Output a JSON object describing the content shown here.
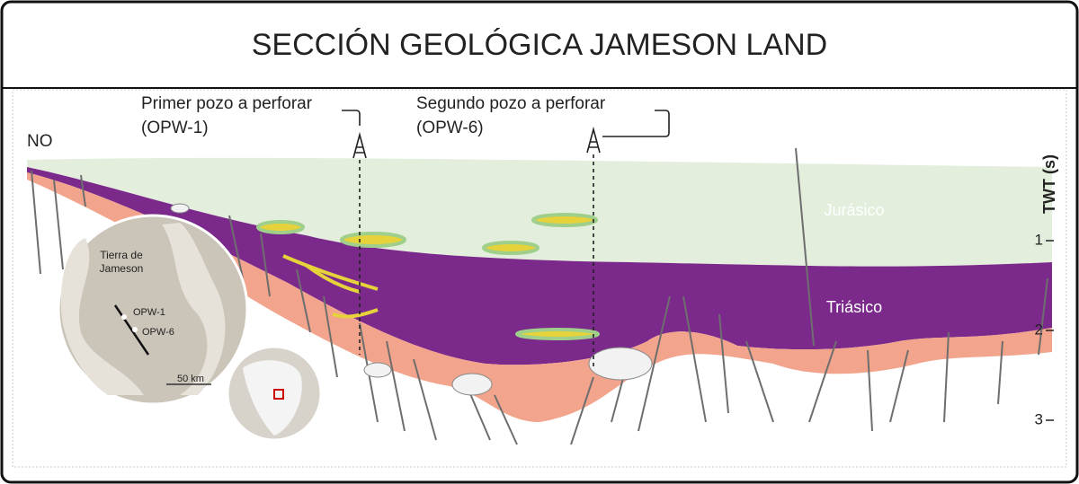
{
  "header": {
    "title": "SECCIÓN GEOLÓGICA JAMESON LAND"
  },
  "wells": [
    {
      "label": "Primer pozo a perforar",
      "code": "(OPW-1)"
    },
    {
      "label": "Segundo pozo a perforar",
      "code": "(OPW-6)"
    }
  ],
  "section": {
    "direction": "NO",
    "layers": [
      "Jurásico",
      "Triásico"
    ]
  },
  "axis": {
    "title": "TWT (s)",
    "ticks": [
      "1",
      "2",
      "3"
    ]
  },
  "map": {
    "region": [
      "Tierra de",
      "Jameson"
    ],
    "points": [
      "OPW-1",
      "OPW-6"
    ],
    "scale": "50 km"
  }
}
